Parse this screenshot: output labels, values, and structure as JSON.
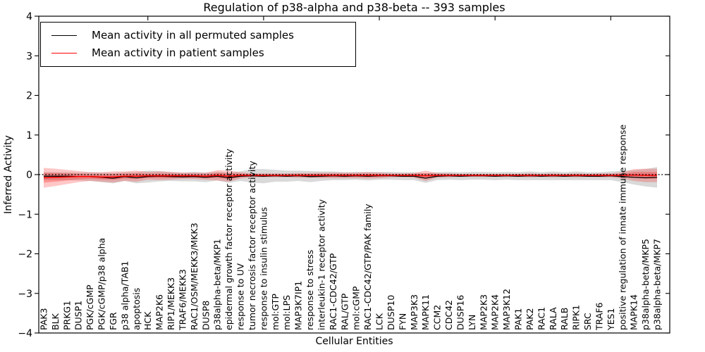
{
  "chart_data": {
    "type": "line",
    "title": "Regulation of p38-alpha and p38-beta -- 393 samples",
    "xlabel": "Cellular Entities",
    "ylabel": "Inferred Activity",
    "ylim": [
      -4,
      4
    ],
    "yticks": [
      -4,
      -3,
      -2,
      -1,
      0,
      1,
      2,
      3,
      4
    ],
    "xticks": [
      10,
      20,
      30,
      40,
      50
    ],
    "grid": false,
    "legend_position": "upper left",
    "zero_line": 0,
    "categories": [
      "PAK3",
      "BLK",
      "PRKG1",
      "DUSP1",
      "PGK/cGMP",
      "PGK/cGMP/p38 alpha",
      "FGR",
      "p38 alpha/TAB1",
      "apoptosis",
      "HCK",
      "MAP2K6",
      "RIP1/MEKK3",
      "TRAF6/MEKK3",
      "RAC1/OSM/MEKK3/MKK3",
      "DUSP8",
      "p38alpha-beta/MKP1",
      "epidermal growth factor receptor activity",
      "response to UV",
      "tumor necrosis factor receptor activity",
      "response to insulin stimulus",
      "mol:GTP",
      "mol:LPS",
      "MAP3K7IP1",
      "response to stress",
      "interleukin-1 receptor activity",
      "RAC1-CDC42/GTP",
      "RAL/GTP",
      "mol:cGMP",
      "RAC1-CDC42/GTP/PAK family",
      "LCK",
      "DUSP10",
      "FYN",
      "MAP3K3",
      "MAPK11",
      "CCM2",
      "CDC42",
      "DUSP16",
      "LYN",
      "MAP2K3",
      "MAP2K4",
      "MAP3K12",
      "PAK1",
      "PAK2",
      "RAC1",
      "RALA",
      "RALB",
      "RIPK1",
      "SRC",
      "TRAF6",
      "YES1",
      "positive regulation of innate immune response",
      "MAPK14",
      "p38alpha-beta/MKP5",
      "p38alpha-beta/MKP7"
    ],
    "series": [
      {
        "name": "Mean activity in all permuted samples",
        "color": "#000000",
        "values": [
          -0.04,
          -0.04,
          -0.04,
          -0.05,
          -0.05,
          -0.07,
          -0.09,
          -0.05,
          -0.08,
          -0.05,
          -0.04,
          -0.05,
          -0.06,
          -0.05,
          -0.07,
          -0.04,
          -0.08,
          -0.04,
          -0.03,
          -0.04,
          -0.03,
          -0.04,
          -0.03,
          -0.05,
          -0.04,
          -0.03,
          -0.04,
          -0.03,
          -0.04,
          -0.03,
          -0.03,
          -0.04,
          -0.04,
          -0.09,
          -0.04,
          -0.03,
          -0.04,
          -0.03,
          -0.03,
          -0.04,
          -0.03,
          -0.04,
          -0.03,
          -0.04,
          -0.03,
          -0.04,
          -0.03,
          -0.04,
          -0.04,
          -0.03,
          -0.05,
          -0.07,
          -0.08,
          -0.07
        ],
        "std": [
          0.1,
          0.1,
          0.1,
          0.1,
          0.11,
          0.12,
          0.13,
          0.11,
          0.14,
          0.15,
          0.13,
          0.11,
          0.11,
          0.12,
          0.12,
          0.11,
          0.13,
          0.12,
          0.17,
          0.18,
          0.15,
          0.14,
          0.13,
          0.14,
          0.12,
          0.11,
          0.1,
          0.1,
          0.11,
          0.1,
          0.1,
          0.1,
          0.1,
          0.12,
          0.1,
          0.1,
          0.1,
          0.1,
          0.1,
          0.1,
          0.1,
          0.1,
          0.11,
          0.1,
          0.11,
          0.1,
          0.11,
          0.1,
          0.1,
          0.11,
          0.14,
          0.18,
          0.22,
          0.26
        ]
      },
      {
        "name": "Mean activity in patient samples",
        "color": "#ff0000",
        "values": [
          -0.08,
          -0.07,
          -0.06,
          -0.05,
          -0.05,
          -0.06,
          -0.06,
          -0.04,
          -0.04,
          -0.03,
          -0.03,
          -0.03,
          -0.03,
          -0.03,
          -0.04,
          -0.02,
          -0.04,
          -0.02,
          -0.02,
          -0.02,
          -0.02,
          -0.02,
          -0.02,
          -0.02,
          -0.02,
          -0.02,
          -0.02,
          -0.02,
          -0.02,
          -0.02,
          -0.02,
          -0.02,
          -0.02,
          -0.03,
          -0.02,
          -0.02,
          -0.02,
          -0.02,
          -0.02,
          -0.02,
          -0.02,
          -0.02,
          -0.02,
          -0.02,
          -0.02,
          -0.02,
          -0.02,
          -0.02,
          -0.02,
          -0.02,
          -0.02,
          -0.01,
          -0.02,
          -0.02
        ],
        "std": [
          0.25,
          0.22,
          0.18,
          0.14,
          0.11,
          0.12,
          0.14,
          0.12,
          0.14,
          0.1,
          0.11,
          0.1,
          0.08,
          0.08,
          0.09,
          0.13,
          0.14,
          0.08,
          0.05,
          0.05,
          0.05,
          0.05,
          0.06,
          0.06,
          0.07,
          0.07,
          0.07,
          0.07,
          0.08,
          0.07,
          0.05,
          0.05,
          0.06,
          0.13,
          0.06,
          0.05,
          0.04,
          0.04,
          0.04,
          0.04,
          0.04,
          0.04,
          0.05,
          0.04,
          0.05,
          0.04,
          0.05,
          0.04,
          0.05,
          0.05,
          0.08,
          0.15,
          0.17,
          0.17
        ]
      }
    ]
  },
  "colors": {
    "background": "#ffffff",
    "frame": "#000000",
    "permuted_band": "#d9d9d9",
    "patient_band_outer": "#f4b6b6",
    "patient_band_inner": "#e87f7f"
  }
}
